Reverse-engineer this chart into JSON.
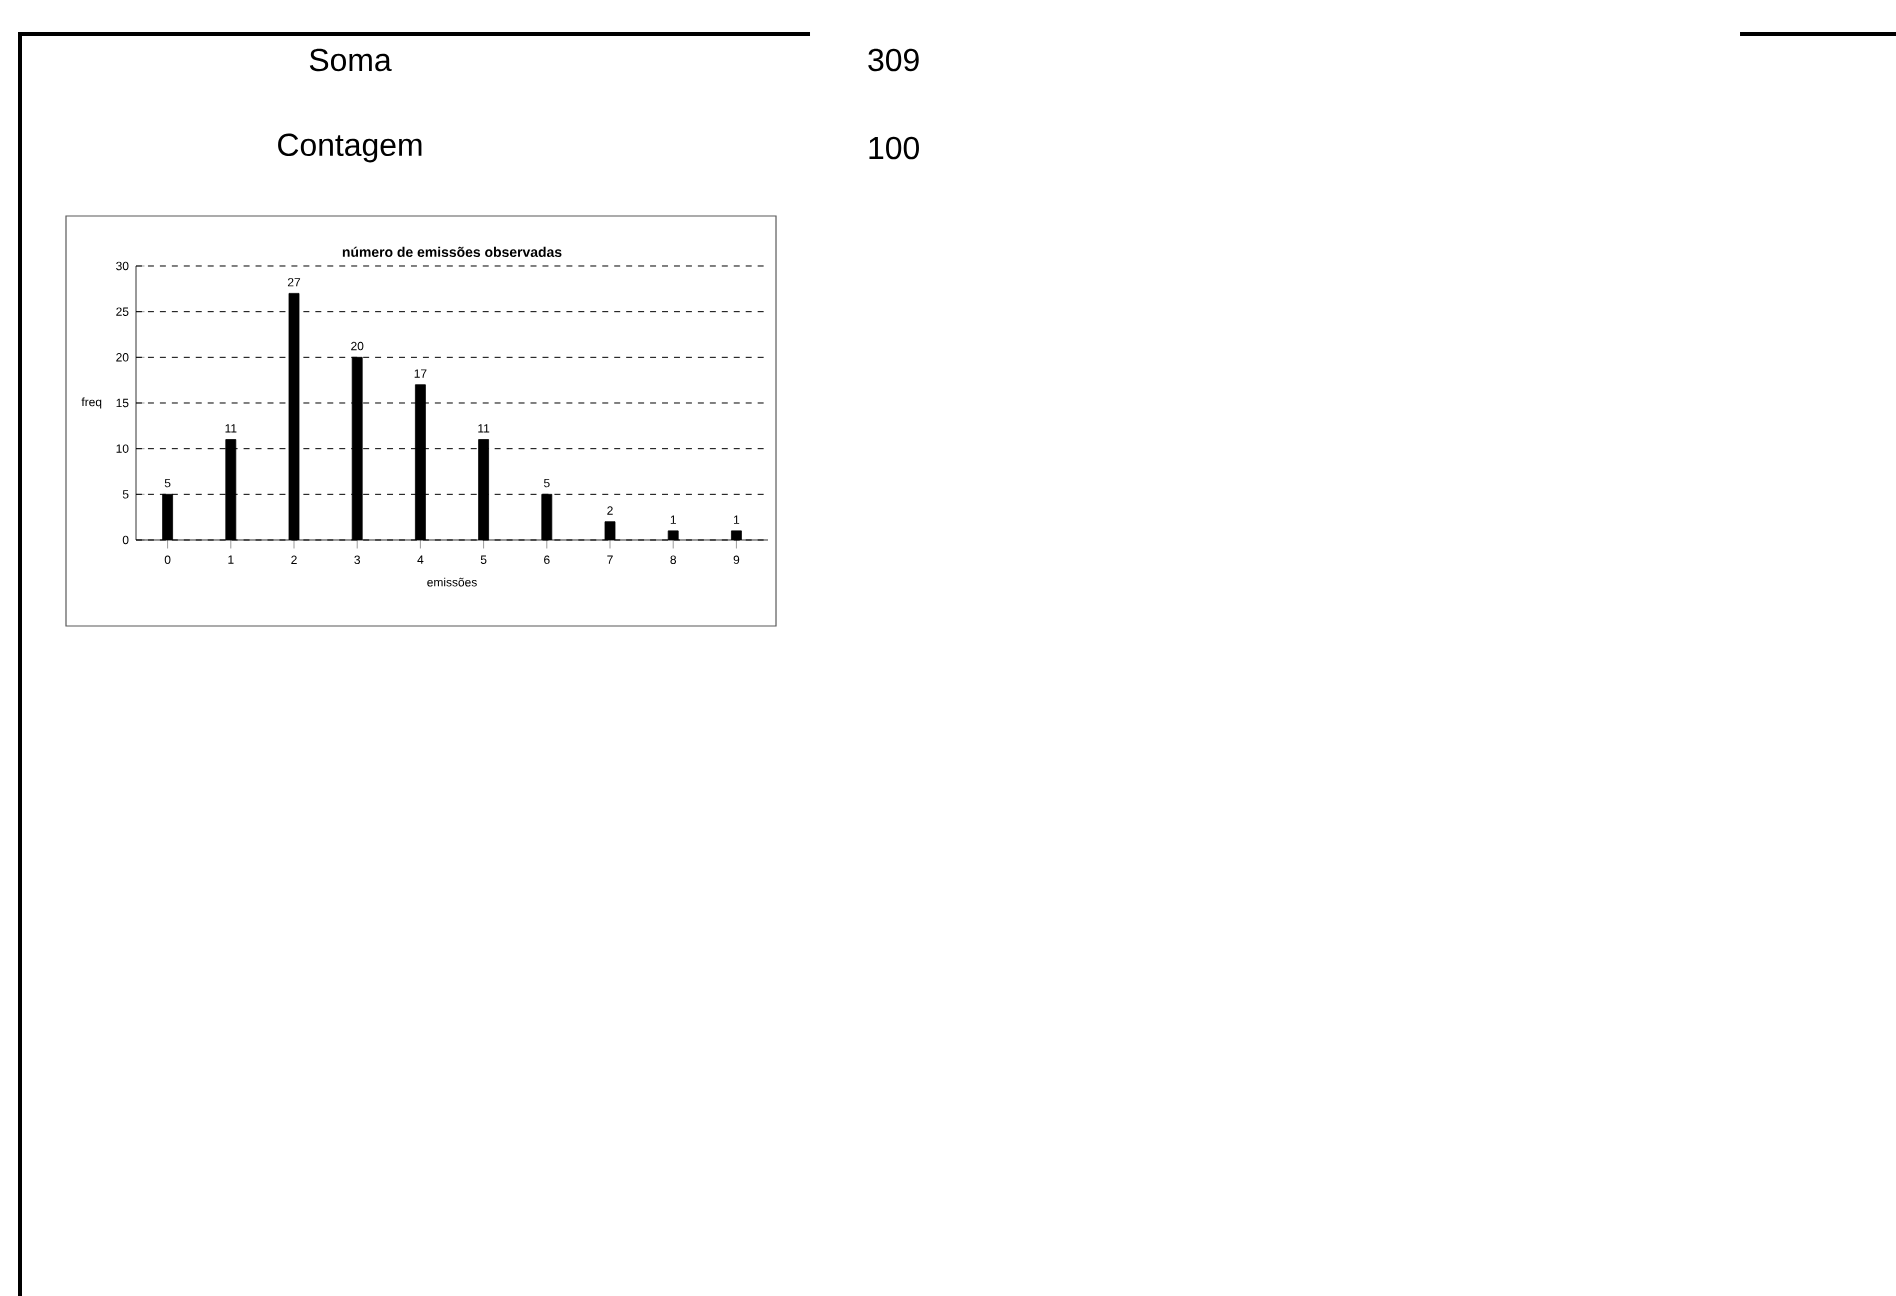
{
  "chart_data": {
    "type": "bar",
    "title": "número de emissões observadas",
    "xlabel": "emissões",
    "ylabel": "freq",
    "categories": [
      "0",
      "1",
      "2",
      "3",
      "4",
      "5",
      "6",
      "7",
      "8",
      "9"
    ],
    "values": [
      5,
      11,
      27,
      20,
      17,
      11,
      5,
      2,
      1,
      1
    ],
    "color": "#000000",
    "ylim": [
      0,
      30
    ],
    "yticks": [
      0,
      5,
      10,
      15,
      20,
      25,
      30
    ],
    "grid": "y",
    "data_labels": true,
    "annotations": [
      "Soma",
      "309",
      "Contagem",
      "100"
    ]
  }
}
